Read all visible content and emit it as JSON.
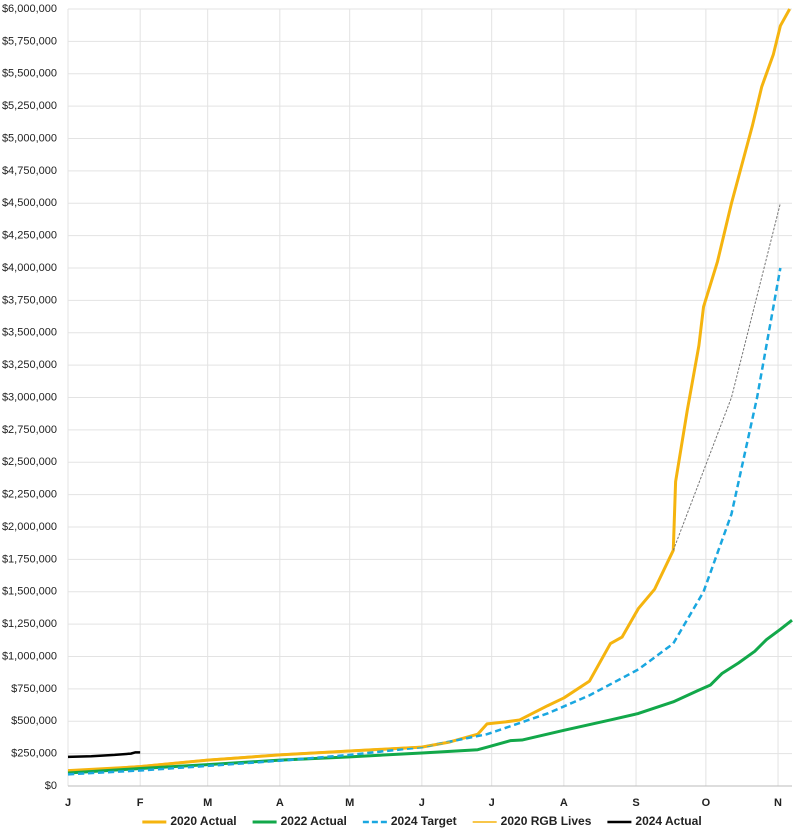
{
  "chart_data": {
    "type": "line",
    "grid": true,
    "legend": "bottom",
    "xlim": [
      0,
      311
    ],
    "xticks": [
      {
        "value": 0,
        "label": "J"
      },
      {
        "value": 31,
        "label": "F"
      },
      {
        "value": 60,
        "label": "M"
      },
      {
        "value": 91,
        "label": "A"
      },
      {
        "value": 121,
        "label": "M"
      },
      {
        "value": 152,
        "label": "J"
      },
      {
        "value": 182,
        "label": "J"
      },
      {
        "value": 213,
        "label": "A"
      },
      {
        "value": 244,
        "label": "S"
      },
      {
        "value": 274,
        "label": "O"
      },
      {
        "value": 305,
        "label": "N"
      }
    ],
    "ylim": [
      0,
      6000000
    ],
    "yticks": [
      {
        "value": 0,
        "label": "$0"
      },
      {
        "value": 250000,
        "label": "$250,000"
      },
      {
        "value": 500000,
        "label": "$500,000"
      },
      {
        "value": 750000,
        "label": "$750,000"
      },
      {
        "value": 1000000,
        "label": "$1,000,000"
      },
      {
        "value": 1250000,
        "label": "$1,250,000"
      },
      {
        "value": 1500000,
        "label": "$1,500,000"
      },
      {
        "value": 1750000,
        "label": "$1,750,000"
      },
      {
        "value": 2000000,
        "label": "$2,000,000"
      },
      {
        "value": 2250000,
        "label": "$2,250,000"
      },
      {
        "value": 2500000,
        "label": "$2,500,000"
      },
      {
        "value": 2750000,
        "label": "$2,750,000"
      },
      {
        "value": 3000000,
        "label": "$3,000,000"
      },
      {
        "value": 3250000,
        "label": "$3,250,000"
      },
      {
        "value": 3500000,
        "label": "$3,500,000"
      },
      {
        "value": 3750000,
        "label": "$3,750,000"
      },
      {
        "value": 4000000,
        "label": "$4,000,000"
      },
      {
        "value": 4250000,
        "label": "$4,250,000"
      },
      {
        "value": 4500000,
        "label": "$4,500,000"
      },
      {
        "value": 4750000,
        "label": "$4,750,000"
      },
      {
        "value": 5000000,
        "label": "$5,000,000"
      },
      {
        "value": 5250000,
        "label": "$5,250,000"
      },
      {
        "value": 5500000,
        "label": "$5,500,000"
      },
      {
        "value": 5750000,
        "label": "$5,750,000"
      },
      {
        "value": 6000000,
        "label": "$6,000,000"
      }
    ],
    "series": [
      {
        "name": "2020 Actual",
        "color": "#f5b40f",
        "width": 3,
        "dashed": false,
        "x": [
          0,
          31,
          60,
          91,
          121,
          152,
          164,
          176,
          180,
          188,
          194,
          206,
          213,
          224,
          233,
          238,
          245,
          252,
          260,
          261,
          266,
          271,
          273,
          279,
          285,
          288,
          294,
          298,
          303,
          306,
          310
        ],
        "values": [
          110000,
          150000,
          200000,
          240000,
          270000,
          300000,
          340000,
          400000,
          480000,
          495000,
          510000,
          620000,
          680000,
          810000,
          1100000,
          1150000,
          1370000,
          1520000,
          1820000,
          2350000,
          2900000,
          3400000,
          3700000,
          4050000,
          4500000,
          4700000,
          5100000,
          5400000,
          5650000,
          5870000,
          6000000
        ]
      },
      {
        "name": "2022 Actual",
        "color": "#12a84a",
        "width": 3,
        "dashed": false,
        "x": [
          0,
          31,
          60,
          91,
          121,
          152,
          176,
          180,
          190,
          195,
          213,
          233,
          245,
          260,
          271,
          276,
          281,
          288,
          295,
          300,
          306,
          311
        ],
        "values": [
          100000,
          135000,
          165000,
          200000,
          225000,
          255000,
          280000,
          300000,
          350000,
          355000,
          430000,
          510000,
          560000,
          650000,
          740000,
          780000,
          870000,
          950000,
          1040000,
          1130000,
          1210000,
          1280000
        ]
      },
      {
        "name": "2024 Target",
        "color": "#1aa7e0",
        "width": 2.5,
        "dashed": true,
        "x": [
          0,
          31,
          60,
          91,
          121,
          152,
          180,
          206,
          224,
          245,
          260,
          273,
          285,
          296,
          306
        ],
        "values": [
          90000,
          120000,
          155000,
          195000,
          240000,
          300000,
          400000,
          560000,
          700000,
          900000,
          1100000,
          1500000,
          2100000,
          3000000,
          4000000
        ]
      },
      {
        "name": "2020 RGB Lives",
        "color": "#f5b40f",
        "width": 1.5,
        "dashed": false,
        "x": [
          0,
          31,
          60,
          91,
          121,
          152,
          164
        ],
        "values": [
          125000,
          155000,
          205000,
          245000,
          275000,
          305000,
          340000
        ]
      },
      {
        "name": "2024 Actual",
        "color": "#000000",
        "width": 2.5,
        "dashed": false,
        "x": [
          0,
          10,
          20,
          27,
          29,
          31
        ],
        "values": [
          225000,
          230000,
          240000,
          250000,
          260000,
          260000
        ]
      },
      {
        "color": "#777777",
        "width": 1,
        "dashed": true,
        "x": [
          260,
          285,
          306
        ],
        "values": [
          1820000,
          3000000,
          4500000
        ]
      }
    ]
  }
}
